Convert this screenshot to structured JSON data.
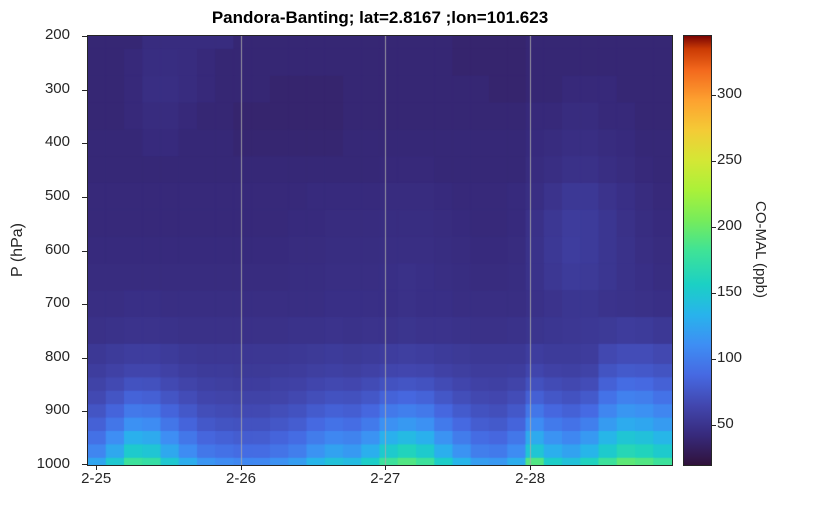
{
  "title": "Pandora-Banting; lat=2.8167 ;lon=101.623",
  "axes": {
    "ylabel": "P (hPa)",
    "y_ticks": [
      200,
      300,
      400,
      500,
      600,
      700,
      800,
      900,
      1000
    ],
    "x_ticks": [
      "2-25",
      "2-26",
      "2-27",
      "2-28"
    ],
    "x_tick_positions": [
      0.014,
      0.262,
      0.509,
      0.757
    ],
    "gridline_positions": [
      0.262,
      0.509,
      0.757
    ],
    "grid_color": "#aaaaaa",
    "axis_color": "#262626",
    "title_color": "#000000"
  },
  "colorbar": {
    "label": "CO-MAL (ppb)",
    "ticks": [
      50,
      100,
      150,
      200,
      250,
      300
    ],
    "clim": [
      20,
      345
    ],
    "stops": [
      [
        0.0,
        "#30123b"
      ],
      [
        0.07,
        "#372a7c"
      ],
      [
        0.14,
        "#4247af"
      ],
      [
        0.21,
        "#4669e2"
      ],
      [
        0.28,
        "#3e8ef4"
      ],
      [
        0.35,
        "#28b3ec"
      ],
      [
        0.42,
        "#1bd0c5"
      ],
      [
        0.5,
        "#3fe396"
      ],
      [
        0.57,
        "#76ec5b"
      ],
      [
        0.64,
        "#aaf139"
      ],
      [
        0.71,
        "#d4e735"
      ],
      [
        0.78,
        "#f4cb36"
      ],
      [
        0.85,
        "#fda130"
      ],
      [
        0.92,
        "#f3691d"
      ],
      [
        0.97,
        "#ca3a04"
      ],
      [
        1.0,
        "#7a0403"
      ]
    ]
  },
  "chart_data": {
    "type": "heatmap",
    "title": "Pandora-Banting; lat=2.8167 ;lon=101.623",
    "xlabel": "",
    "ylabel": "P (hPa)",
    "colormap": "turbo",
    "clim": [
      20,
      345
    ],
    "units": "ppb",
    "x_ticks": [
      "2-25",
      "2-26",
      "2-27",
      "2-28"
    ],
    "time_step_hours": 3,
    "x_range_days": 4.04,
    "ylim_hPa": [
      200,
      1000
    ],
    "pressure_levels_hPa": [
      200,
      250,
      300,
      350,
      400,
      450,
      500,
      550,
      600,
      650,
      700,
      750,
      800,
      825,
      850,
      875,
      900,
      925,
      950,
      975,
      1000
    ],
    "values_ppb": [
      [
        40,
        40,
        40,
        44,
        44,
        44,
        44,
        44,
        40,
        40,
        40,
        40,
        40,
        40,
        40,
        40,
        40,
        40,
        40,
        40,
        38,
        38,
        38,
        38,
        40,
        40,
        40,
        40,
        40,
        40,
        40,
        40
      ],
      [
        40,
        40,
        42,
        45,
        45,
        44,
        42,
        40,
        40,
        40,
        40,
        40,
        40,
        40,
        40,
        40,
        40,
        40,
        40,
        40,
        38,
        38,
        38,
        38,
        40,
        40,
        40,
        40,
        40,
        40,
        40,
        40
      ],
      [
        40,
        40,
        42,
        46,
        46,
        44,
        42,
        40,
        40,
        40,
        38,
        38,
        38,
        38,
        40,
        40,
        40,
        40,
        40,
        40,
        40,
        40,
        38,
        38,
        40,
        40,
        42,
        42,
        42,
        40,
        40,
        40
      ],
      [
        40,
        40,
        42,
        44,
        44,
        42,
        40,
        40,
        38,
        38,
        38,
        38,
        38,
        38,
        40,
        40,
        40,
        40,
        40,
        40,
        40,
        40,
        40,
        40,
        42,
        42,
        44,
        44,
        42,
        42,
        40,
        40
      ],
      [
        41,
        41,
        41,
        43,
        43,
        41,
        41,
        41,
        39,
        39,
        39,
        39,
        39,
        39,
        41,
        41,
        41,
        41,
        41,
        41,
        41,
        41,
        41,
        41,
        43,
        44,
        46,
        46,
        44,
        43,
        41,
        41
      ],
      [
        41,
        41,
        41,
        41,
        41,
        41,
        41,
        41,
        41,
        41,
        41,
        41,
        41,
        41,
        41,
        41,
        42,
        42,
        42,
        41,
        41,
        41,
        41,
        41,
        44,
        46,
        48,
        48,
        46,
        44,
        42,
        41
      ],
      [
        42,
        42,
        42,
        42,
        42,
        42,
        42,
        42,
        42,
        42,
        42,
        42,
        43,
        43,
        43,
        43,
        44,
        44,
        44,
        43,
        42,
        42,
        42,
        43,
        46,
        50,
        54,
        54,
        50,
        47,
        44,
        42
      ],
      [
        42,
        42,
        42,
        42,
        42,
        42,
        42,
        42,
        42,
        42,
        42,
        43,
        43,
        44,
        44,
        44,
        45,
        45,
        45,
        44,
        43,
        42,
        42,
        43,
        48,
        53,
        57,
        56,
        52,
        48,
        45,
        43
      ],
      [
        43,
        43,
        43,
        43,
        43,
        43,
        43,
        43,
        43,
        43,
        43,
        44,
        44,
        45,
        45,
        45,
        46,
        46,
        46,
        45,
        44,
        43,
        43,
        44,
        49,
        54,
        58,
        56,
        52,
        49,
        46,
        44
      ],
      [
        44,
        44,
        44,
        44,
        44,
        44,
        44,
        44,
        44,
        44,
        44,
        45,
        45,
        46,
        46,
        46,
        47,
        48,
        47,
        46,
        45,
        44,
        44,
        45,
        49,
        53,
        56,
        55,
        52,
        49,
        47,
        45
      ],
      [
        46,
        46,
        47,
        47,
        46,
        46,
        46,
        46,
        46,
        46,
        46,
        46,
        46,
        47,
        47,
        47,
        47,
        48,
        47,
        47,
        46,
        46,
        46,
        46,
        48,
        50,
        52,
        52,
        50,
        49,
        48,
        47
      ],
      [
        48,
        49,
        50,
        50,
        49,
        48,
        48,
        48,
        48,
        48,
        48,
        49,
        49,
        50,
        49,
        50,
        50,
        51,
        50,
        50,
        49,
        48,
        48,
        49,
        51,
        52,
        53,
        54,
        55,
        57,
        56,
        54
      ],
      [
        54,
        56,
        58,
        58,
        56,
        54,
        53,
        53,
        53,
        53,
        53,
        54,
        55,
        56,
        55,
        56,
        58,
        59,
        58,
        56,
        55,
        54,
        54,
        54,
        58,
        56,
        56,
        57,
        66,
        69,
        69,
        66
      ],
      [
        58,
        61,
        64,
        64,
        61,
        58,
        56,
        56,
        55,
        55,
        56,
        57,
        59,
        60,
        59,
        61,
        64,
        65,
        64,
        61,
        59,
        57,
        57,
        58,
        64,
        61,
        60,
        62,
        74,
        78,
        77,
        74
      ],
      [
        62,
        67,
        73,
        72,
        67,
        63,
        60,
        59,
        58,
        58,
        60,
        61,
        64,
        66,
        65,
        68,
        73,
        75,
        73,
        68,
        64,
        61,
        60,
        63,
        72,
        68,
        66,
        69,
        83,
        90,
        88,
        83
      ],
      [
        67,
        75,
        84,
        82,
        75,
        69,
        64,
        63,
        62,
        62,
        63,
        66,
        70,
        73,
        72,
        76,
        84,
        87,
        84,
        76,
        70,
        66,
        65,
        69,
        82,
        76,
        73,
        78,
        94,
        103,
        101,
        94
      ],
      [
        75,
        85,
        98,
        96,
        85,
        77,
        70,
        68,
        67,
        67,
        70,
        73,
        79,
        83,
        81,
        87,
        98,
        102,
        98,
        87,
        79,
        73,
        71,
        77,
        96,
        87,
        83,
        89,
        106,
        116,
        113,
        106
      ],
      [
        83,
        96,
        113,
        110,
        96,
        85,
        77,
        74,
        73,
        73,
        76,
        80,
        88,
        94,
        91,
        99,
        113,
        118,
        113,
        99,
        88,
        80,
        78,
        85,
        110,
        99,
        94,
        102,
        119,
        129,
        126,
        119
      ],
      [
        93,
        111,
        132,
        128,
        111,
        97,
        86,
        83,
        80,
        80,
        85,
        90,
        100,
        107,
        104,
        114,
        132,
        139,
        132,
        114,
        100,
        90,
        87,
        97,
        128,
        114,
        107,
        118,
        136,
        148,
        144,
        136
      ],
      [
        106,
        127,
        152,
        148,
        127,
        110,
        97,
        93,
        90,
        90,
        95,
        101,
        114,
        123,
        118,
        131,
        152,
        161,
        152,
        131,
        114,
        101,
        99,
        110,
        148,
        131,
        123,
        135,
        152,
        165,
        161,
        152
      ],
      [
        125,
        150,
        180,
        175,
        150,
        130,
        115,
        110,
        107,
        107,
        113,
        120,
        135,
        145,
        140,
        155,
        180,
        190,
        180,
        155,
        135,
        120,
        117,
        130,
        190,
        155,
        145,
        160,
        180,
        195,
        190,
        180
      ]
    ]
  }
}
